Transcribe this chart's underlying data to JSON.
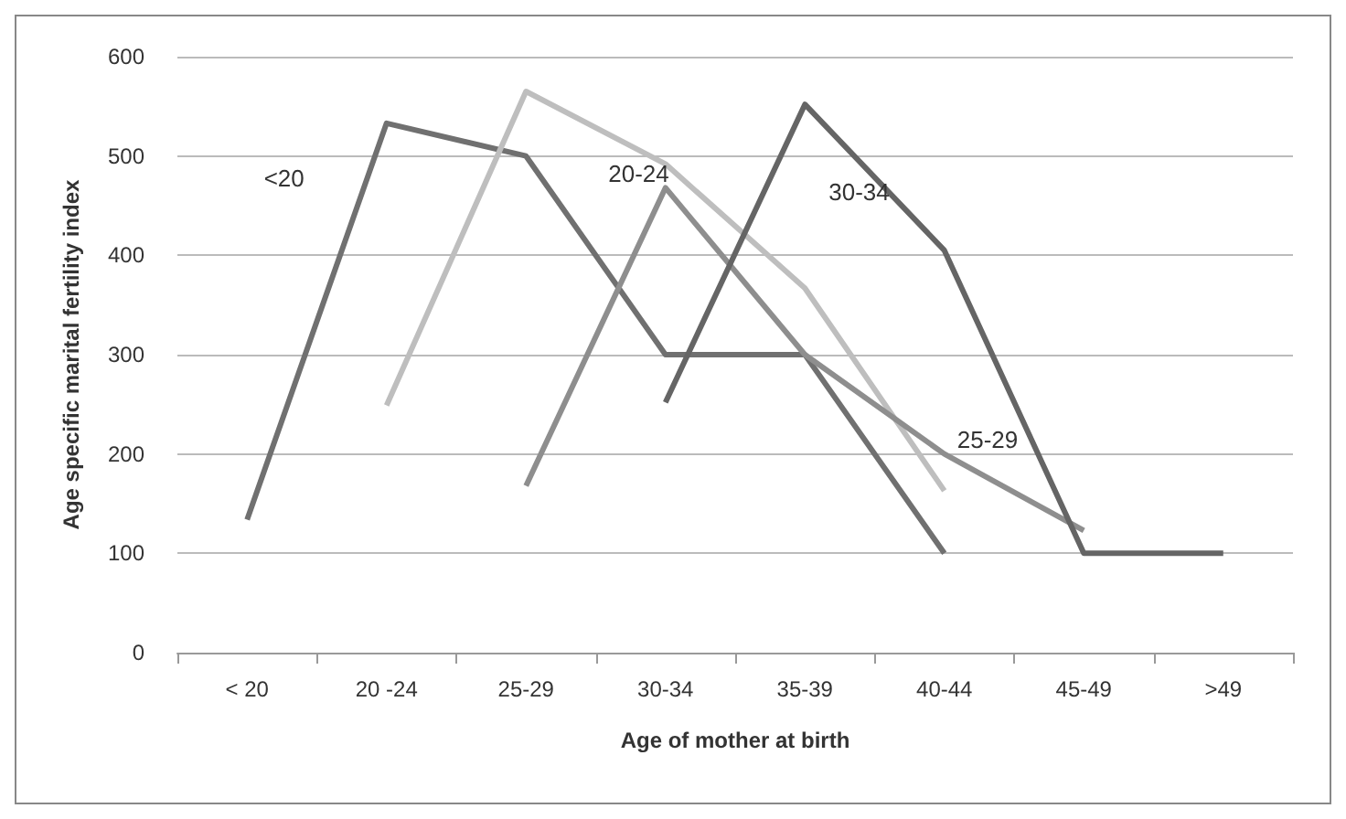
{
  "chart_data": {
    "type": "line",
    "xlabel": "Age of mother at birth",
    "ylabel": "Age specific marital fertility index",
    "categories": [
      "< 20",
      "20 -24",
      "25-29",
      "30-34",
      "35-39",
      "40-44",
      "45-49",
      ">49"
    ],
    "series": [
      {
        "name": "<20",
        "color": "#707070",
        "values": [
          134,
          533,
          500,
          300,
          300,
          100,
          null,
          null
        ]
      },
      {
        "name": "20-24",
        "color": "#bebebe",
        "values": [
          null,
          249,
          565,
          492,
          367,
          163,
          null,
          null
        ]
      },
      {
        "name": "25-29",
        "color": "#8e8e8e",
        "values": [
          null,
          null,
          168,
          468,
          300,
          200,
          123,
          null
        ]
      },
      {
        "name": "30-34",
        "color": "#656565",
        "values": [
          null,
          null,
          null,
          252,
          552,
          405,
          100,
          100
        ]
      }
    ],
    "ylim": [
      0,
      600
    ],
    "yticks": [
      0,
      100,
      200,
      300,
      400,
      500,
      600
    ],
    "grid": "y",
    "legend": false,
    "marker": "none",
    "line_style": "solid"
  }
}
